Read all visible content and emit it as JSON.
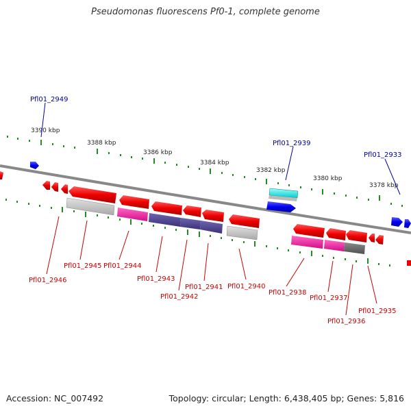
{
  "title": "Pseudomonas fluorescens Pf0-1, complete genome",
  "footer": {
    "accession": "Accession: NC_007492",
    "summary": "Topology: circular; Length: 6,438,405 bp; Genes: 5,816"
  },
  "scale_labels": [
    "3390 kbp",
    "3388 kbp",
    "3386 kbp",
    "3384 kbp",
    "3382 kbp",
    "3380 kbp",
    "3378 kbp"
  ],
  "gene_labels": {
    "top": [
      "Pfl01_2949",
      "Pfl01_2939",
      "Pfl01_2933"
    ],
    "bottom": [
      "Pfl01_2946",
      "Pfl01_2945",
      "Pfl01_2944",
      "Pfl01_2943",
      "Pfl01_2942",
      "Pfl01_2941",
      "Pfl01_2940",
      "Pfl01_2938",
      "Pfl01_2937",
      "Pfl01_2936",
      "Pfl01_2935"
    ]
  },
  "colors": {
    "forward_gene": "#0000ee",
    "reverse_gene": "#ee0000",
    "tick": "#228b22",
    "backbone": "#808080",
    "cog_cyan": "#00dddd",
    "cog_magenta": "#ee1199",
    "cog_purple": "#4b3f8c",
    "cog_gray": "#bbbbbb",
    "cog_dark_gray": "#666666"
  }
}
